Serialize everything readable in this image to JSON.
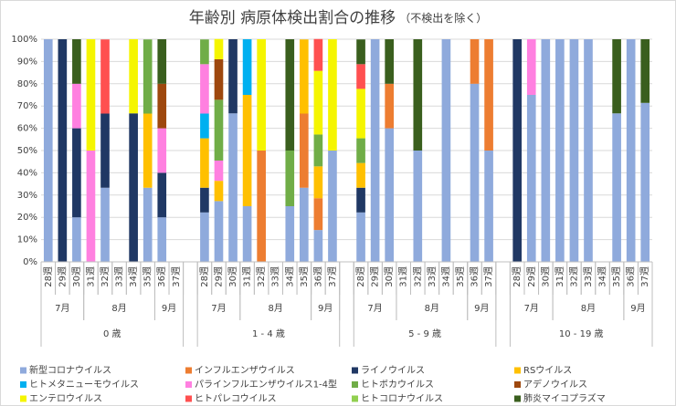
{
  "chart_data": {
    "type": "stacked_bar",
    "title": "年齢別 病原体検出割合の推移",
    "subtitle": "（不検出を除く）",
    "categories": [
      "28週",
      "29週",
      "30週",
      "31週",
      "32週",
      "33週",
      "34週",
      "35週",
      "36週",
      "37週",
      null,
      "28週",
      "29週",
      "30週",
      "31週",
      "32週",
      "33週",
      "34週",
      "35週",
      "36週",
      "37週",
      null,
      "28週",
      "29週",
      "30週",
      "31週",
      "32週",
      "33週",
      "34週",
      "35週",
      "36週",
      "37週",
      null,
      "28週",
      "29週",
      "30週",
      "31週",
      "32週",
      "33週",
      "34週",
      "35週",
      "36週",
      "37週"
    ],
    "months": [
      "7月",
      "7月",
      "7月",
      "8月",
      "8月",
      "8月",
      "8月",
      "8月",
      "9月",
      "9月",
      null,
      "7月",
      "7月",
      "7月",
      "8月",
      "8月",
      "8月",
      "8月",
      "8月",
      "9月",
      "9月",
      null,
      "7月",
      "7月",
      "7月",
      "8月",
      "8月",
      "8月",
      "8月",
      "8月",
      "9月",
      "9月",
      null,
      "7月",
      "7月",
      "7月",
      "8月",
      "8月",
      "8月",
      "8月",
      "8月",
      "9月",
      "9月"
    ],
    "ages": [
      "0 歳",
      "0 歳",
      "0 歳",
      "0 歳",
      "0 歳",
      "0 歳",
      "0 歳",
      "0 歳",
      "0 歳",
      "0 歳",
      null,
      "1 - 4 歳",
      "1 - 4 歳",
      "1 - 4 歳",
      "1 - 4 歳",
      "1 - 4 歳",
      "1 - 4 歳",
      "1 - 4 歳",
      "1 - 4 歳",
      "1 - 4 歳",
      "1 - 4 歳",
      null,
      "5 - 9 歳",
      "5 - 9 歳",
      "5 - 9 歳",
      "5 - 9 歳",
      "5 - 9 歳",
      "5 - 9 歳",
      "5 - 9 歳",
      "5 - 9 歳",
      "5 - 9 歳",
      "5 - 9 歳",
      null,
      "10 - 19 歳",
      "10 - 19 歳",
      "10 - 19 歳",
      "10 - 19 歳",
      "10 - 19 歳",
      "10 - 19 歳",
      "10 - 19 歳",
      "10 - 19 歳",
      "10 - 19 歳",
      "10 - 19 歳"
    ],
    "ylim": [
      0,
      100
    ],
    "yticks": [
      {
        "value": 0,
        "label": "0%"
      },
      {
        "value": 10,
        "label": "10%"
      },
      {
        "value": 20,
        "label": "20%"
      },
      {
        "value": 30,
        "label": "30%"
      },
      {
        "value": 40,
        "label": "40%"
      },
      {
        "value": 50,
        "label": "50%"
      },
      {
        "value": 60,
        "label": "60%"
      },
      {
        "value": 70,
        "label": "70%"
      },
      {
        "value": 80,
        "label": "80%"
      },
      {
        "value": 90,
        "label": "90%"
      },
      {
        "value": 100,
        "label": "100%"
      }
    ],
    "grid": true,
    "legend": "bottom",
    "series": [
      {
        "name": "新型コロナウイルス",
        "color": "#8faadc",
        "values": [
          100,
          0,
          20,
          0,
          33.3,
          0,
          0,
          33.3,
          20,
          0,
          null,
          22.2,
          27.3,
          66.7,
          25,
          0,
          0,
          25,
          33.3,
          14.3,
          50,
          null,
          22.2,
          100,
          60,
          0,
          50,
          0,
          100,
          0,
          80,
          50,
          null,
          0,
          75,
          100,
          100,
          100,
          100,
          0,
          66.7,
          100,
          71.4
        ]
      },
      {
        "name": "インフルエンザウイルス",
        "color": "#ed7d31",
        "values": [
          0,
          0,
          0,
          0,
          0,
          0,
          0,
          0,
          0,
          0,
          null,
          0,
          0,
          0,
          0,
          50,
          0,
          0,
          33.3,
          14.3,
          0,
          null,
          0,
          0,
          20,
          0,
          0,
          0,
          0,
          0,
          20,
          50,
          null,
          0,
          0,
          0,
          0,
          0,
          0,
          0,
          0,
          0,
          0
        ]
      },
      {
        "name": "ライノウイルス",
        "color": "#203864",
        "values": [
          0,
          100,
          40,
          0,
          33.3,
          0,
          66.7,
          0,
          20,
          0,
          null,
          11.1,
          0,
          33.3,
          0,
          0,
          0,
          0,
          0,
          0,
          0,
          null,
          11.1,
          0,
          0,
          0,
          0,
          0,
          0,
          0,
          0,
          0,
          null,
          100,
          0,
          0,
          0,
          0,
          0,
          0,
          0,
          0,
          0
        ]
      },
      {
        "name": "RSウイルス",
        "color": "#ffc000",
        "values": [
          0,
          0,
          0,
          0,
          0,
          0,
          0,
          33.3,
          0,
          0,
          null,
          22.2,
          9.1,
          0,
          50,
          0,
          0,
          0,
          33.3,
          14.3,
          0,
          null,
          11.1,
          0,
          0,
          0,
          0,
          0,
          0,
          0,
          0,
          0,
          null,
          0,
          0,
          0,
          0,
          0,
          0,
          0,
          0,
          0,
          0
        ]
      },
      {
        "name": "ヒトメタニューモウイルス",
        "color": "#00b0f0",
        "values": [
          0,
          0,
          0,
          0,
          0,
          0,
          0,
          0,
          0,
          0,
          null,
          11.1,
          0,
          0,
          25,
          0,
          0,
          0,
          0,
          0,
          0,
          null,
          0,
          0,
          0,
          0,
          0,
          0,
          0,
          0,
          0,
          0,
          null,
          0,
          0,
          0,
          0,
          0,
          0,
          0,
          0,
          0,
          0
        ]
      },
      {
        "name": "パラインフルエンザウイルス1-4型",
        "color": "#ff80e0",
        "values": [
          0,
          0,
          20,
          50,
          0,
          0,
          0,
          0,
          20,
          0,
          null,
          22.2,
          9.1,
          0,
          0,
          0,
          0,
          0,
          0,
          0,
          0,
          null,
          0,
          0,
          0,
          0,
          0,
          0,
          0,
          0,
          0,
          0,
          null,
          0,
          25,
          0,
          0,
          0,
          0,
          0,
          0,
          0,
          0
        ]
      },
      {
        "name": "ヒトボカウイルス",
        "color": "#70ad47",
        "values": [
          0,
          0,
          0,
          0,
          0,
          0,
          0,
          33.3,
          0,
          0,
          null,
          11.1,
          27.3,
          0,
          0,
          0,
          0,
          25,
          0,
          14.3,
          0,
          null,
          11.1,
          0,
          0,
          0,
          0,
          0,
          0,
          0,
          0,
          0,
          null,
          0,
          0,
          0,
          0,
          0,
          0,
          0,
          0,
          0,
          0
        ]
      },
      {
        "name": "アデノウイルス",
        "color": "#9e480e",
        "values": [
          0,
          0,
          0,
          0,
          0,
          0,
          0,
          0,
          20,
          0,
          null,
          0,
          18.2,
          0,
          0,
          0,
          0,
          0,
          0,
          0,
          0,
          null,
          0,
          0,
          0,
          0,
          0,
          0,
          0,
          0,
          0,
          0,
          null,
          0,
          0,
          0,
          0,
          0,
          0,
          0,
          0,
          0,
          0
        ]
      },
      {
        "name": "エンテロウイルス",
        "color": "#f5f500",
        "values": [
          0,
          0,
          0,
          50,
          0,
          0,
          33.3,
          0,
          0,
          0,
          null,
          0,
          9.1,
          0,
          0,
          50,
          0,
          0,
          0,
          28.6,
          50,
          null,
          22.2,
          0,
          0,
          0,
          0,
          0,
          0,
          0,
          0,
          0,
          null,
          0,
          0,
          0,
          0,
          0,
          0,
          0,
          0,
          0,
          0
        ]
      },
      {
        "name": "ヒトパレコウイルス",
        "color": "#ff5050",
        "values": [
          0,
          0,
          0,
          0,
          33.3,
          0,
          0,
          0,
          0,
          0,
          null,
          0,
          0,
          0,
          0,
          0,
          0,
          0,
          0,
          14.3,
          0,
          null,
          11.1,
          0,
          0,
          0,
          0,
          0,
          0,
          0,
          0,
          0,
          null,
          0,
          0,
          0,
          0,
          0,
          0,
          0,
          0,
          0,
          0
        ]
      },
      {
        "name": "ヒトコロナウイルス",
        "color": "#92d050",
        "values": [
          0,
          0,
          0,
          0,
          0,
          0,
          0,
          0,
          0,
          0,
          null,
          0,
          0,
          0,
          0,
          0,
          0,
          0,
          0,
          0,
          0,
          null,
          0,
          0,
          0,
          0,
          0,
          0,
          0,
          0,
          0,
          0,
          null,
          0,
          0,
          0,
          0,
          0,
          0,
          0,
          0,
          0,
          0
        ]
      },
      {
        "name": "肺炎マイコプラズマ",
        "color": "#3a5f1e",
        "values": [
          0,
          0,
          20,
          0,
          0,
          0,
          0,
          0,
          20,
          0,
          null,
          0,
          0,
          0,
          0,
          0,
          0,
          50,
          0,
          0,
          0,
          null,
          11.1,
          0,
          20,
          0,
          50,
          0,
          0,
          0,
          0,
          0,
          null,
          0,
          0,
          0,
          0,
          0,
          0,
          0,
          33.3,
          0,
          28.6
        ]
      }
    ]
  }
}
